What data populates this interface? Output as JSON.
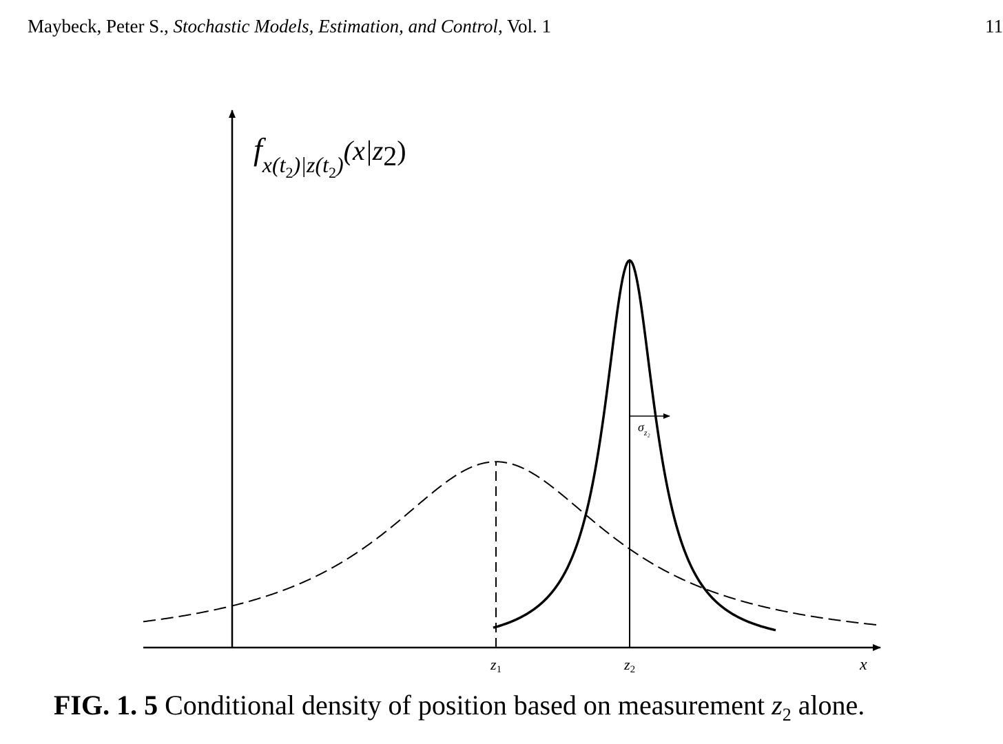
{
  "header": {
    "author": "Maybeck, Peter S.,",
    "book_title": "Stochastic Models, Estimation, and Control",
    "volume": ", Vol. 1",
    "page_number": "11"
  },
  "chart_data": {
    "type": "line",
    "ylabel": {
      "f": "f",
      "sub": "x(t",
      "sub_2a": "2",
      "sub_mid": ")|z(t",
      "sub_2b": "2",
      "sub_end": ")",
      "arg_open": "(x|z",
      "arg_2": "2",
      "arg_close": ")"
    },
    "xlabel": "x",
    "ticks": [
      {
        "label": "z",
        "sub": "1",
        "x": 0.0
      },
      {
        "label": "z",
        "sub": "2",
        "x": 1.0
      }
    ],
    "sigma_label": {
      "text": "σ",
      "sub": "z₂"
    },
    "series": [
      {
        "style": "dashed",
        "mean": 0.0,
        "sigma": 0.85,
        "peak": 0.48
      },
      {
        "style": "solid",
        "mean": 1.0,
        "sigma": 0.3,
        "peak": 1.0
      }
    ],
    "xlim": [
      -2.6,
      2.9
    ],
    "ylim": [
      0,
      1.0
    ]
  },
  "caption": {
    "label": "FIG. 1. 5",
    "text": " Conditional density of position based on measurement ",
    "var": "z",
    "var_sub": "2",
    "end": " alone."
  }
}
